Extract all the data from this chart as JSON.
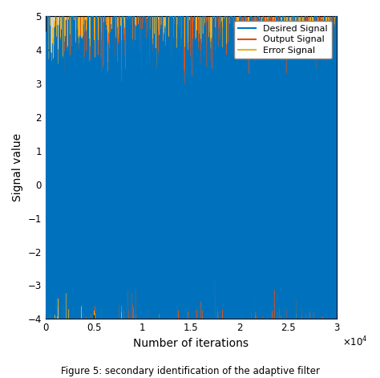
{
  "title": "Figure 5: secondary identification of the adaptive filter",
  "xlabel": "Number of iterations",
  "ylabel": "Signal value",
  "xlim": [
    0,
    30000
  ],
  "ylim": [
    -4,
    5
  ],
  "yticks": [
    -4,
    -3,
    -2,
    -1,
    0,
    1,
    2,
    3,
    4,
    5
  ],
  "xtick_labels": [
    "0",
    "0.5",
    "1",
    "1.5",
    "2",
    "2.5",
    "3"
  ],
  "xtick_positions": [
    0,
    5000,
    10000,
    15000,
    20000,
    25000,
    30000
  ],
  "n_points": 30000,
  "desired_color": "#0072BD",
  "output_color": "#D95319",
  "error_color": "#EDB120",
  "desired_label": "Desired Signal",
  "output_label": "Output Signal",
  "error_label": "Error Signal",
  "bg_color": "#D3D3D3",
  "linewidth": 0.35,
  "seed": 42,
  "figsize": [
    4.74,
    4.71
  ],
  "dpi": 100
}
